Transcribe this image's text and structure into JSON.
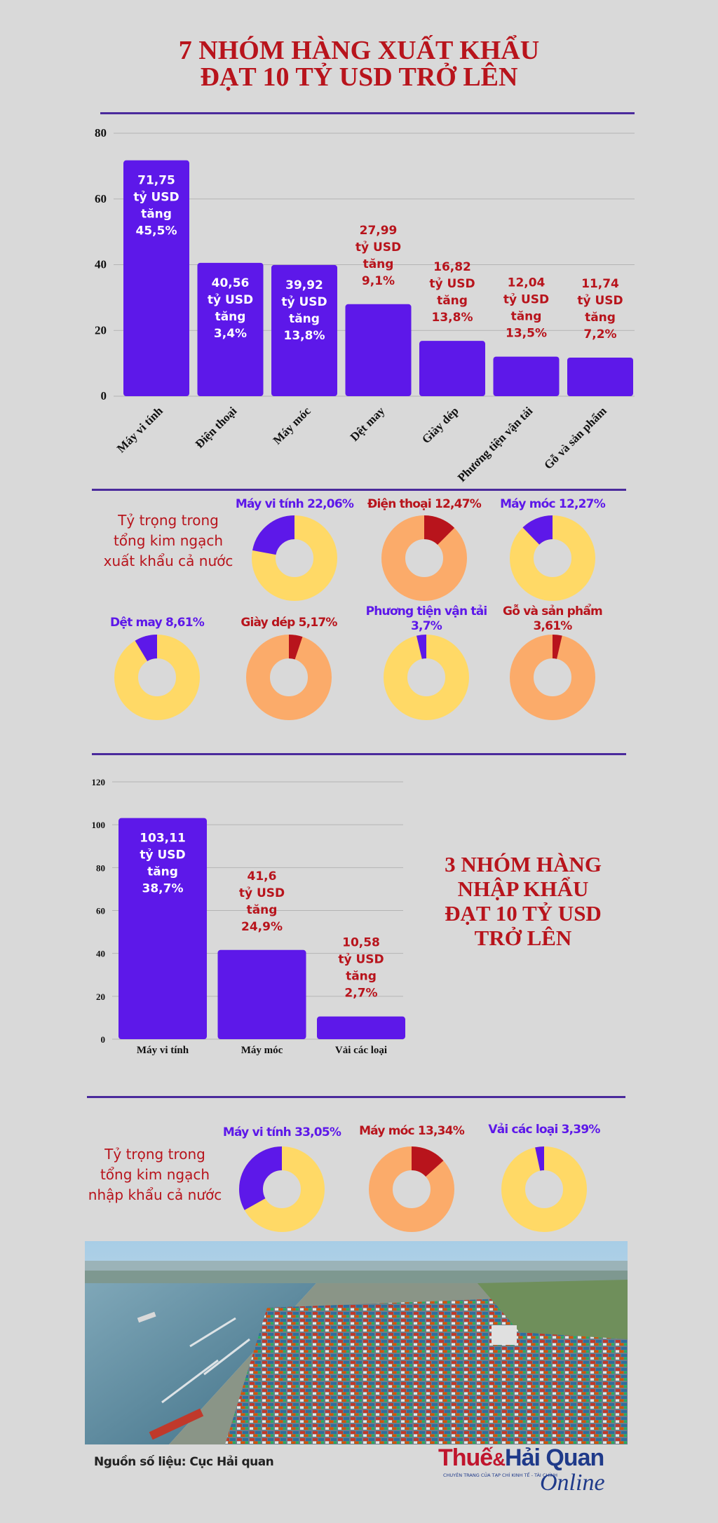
{
  "header": {
    "title_line1": "7 NHÓM HÀNG XUẤT KHẨU",
    "title_line2": "ĐẠT 10 TỶ USD TRỞ LÊN"
  },
  "colors": {
    "bar": "#5d18e9",
    "label_red": "#b8141c",
    "donut_yellow": "#ffd966",
    "donut_orange": "#fbab6a",
    "donut_red": "#b8141c",
    "donut_purple": "#5d18e9",
    "rule": "#4a2a9c"
  },
  "chart_data": [
    {
      "type": "bar",
      "categories": [
        "Máy vi tính",
        "Điện thoại",
        "Máy móc",
        "Dệt may",
        "Giày dép",
        "Phương tiện vận tải",
        "Gỗ và sản phẩm"
      ],
      "values": [
        71.75,
        40.56,
        39.92,
        27.99,
        16.82,
        12.04,
        11.74
      ],
      "data_labels": [
        [
          "71,75",
          "tỷ USD",
          "tăng",
          "45,5%"
        ],
        [
          "40,56",
          "tỷ USD",
          "tăng",
          "3,4%"
        ],
        [
          "39,92",
          "tỷ USD",
          "tăng",
          "13,8%"
        ],
        [
          "27,99",
          "tỷ USD",
          "tăng",
          "9,1%"
        ],
        [
          "16,82",
          "tỷ USD",
          "tăng",
          "13,8%"
        ],
        [
          "12,04",
          "tỷ USD",
          "tăng",
          "13,5%"
        ],
        [
          "11,74",
          "tỷ USD",
          "tăng",
          "7,2%"
        ]
      ],
      "yticks": [
        "0",
        "20",
        "40",
        "60",
        "80"
      ],
      "ylim": [
        0,
        80
      ],
      "grid": true,
      "title": "",
      "xlabel": "",
      "ylabel": ""
    },
    {
      "type": "bar",
      "categories": [
        "Máy vi tính",
        "Máy móc",
        "Vải các loại"
      ],
      "values": [
        103.11,
        41.6,
        10.58
      ],
      "data_labels": [
        [
          "103,11",
          "tỷ USD",
          "tăng",
          "38,7%"
        ],
        [
          "41,6",
          "tỷ USD",
          "tăng",
          "24,9%"
        ],
        [
          "10,58",
          "tỷ USD",
          "tăng",
          "2,7%"
        ]
      ],
      "yticks": [
        "0",
        "20",
        "40",
        "60",
        "80",
        "100",
        "120"
      ],
      "ylim": [
        0,
        120
      ],
      "grid": true,
      "title": "",
      "xlabel": "",
      "ylabel": ""
    },
    {
      "type": "pie",
      "title": "Tỷ trọng trong tổng kim ngạch xuất khẩu cả nước",
      "slices": [
        {
          "label": [
            "Máy vi tính 22,06%"
          ],
          "value": 22.06,
          "color": "purple",
          "base": "yellow"
        },
        {
          "label": [
            "Điện thoại 12,47%"
          ],
          "value": 12.47,
          "color": "red",
          "base": "orange"
        },
        {
          "label": [
            "Máy móc 12,27%"
          ],
          "value": 12.27,
          "color": "purple",
          "base": "yellow"
        },
        {
          "label": [
            "Dệt may 8,61%"
          ],
          "value": 8.61,
          "color": "purple",
          "base": "yellow"
        },
        {
          "label": [
            "Giày dép 5,17%"
          ],
          "value": 5.17,
          "color": "red",
          "base": "orange"
        },
        {
          "label": [
            "Phương tiện vận tải",
            "3,7%"
          ],
          "value": 3.7,
          "color": "purple",
          "base": "yellow"
        },
        {
          "label": [
            "Gỗ và sản phẩm",
            "3,61%"
          ],
          "value": 3.61,
          "color": "red",
          "base": "orange"
        }
      ]
    },
    {
      "type": "pie",
      "title": "Tỷ trọng trong tổng kim ngạch nhập khẩu cả nước",
      "slices": [
        {
          "label": [
            "Máy vi tính 33,05%"
          ],
          "value": 33.05,
          "color": "purple",
          "base": "yellow"
        },
        {
          "label": [
            "Máy móc 13,34%"
          ],
          "value": 13.34,
          "color": "red",
          "base": "orange"
        },
        {
          "label": [
            "Vải các loại 3,39%"
          ],
          "value": 3.39,
          "color": "purple",
          "base": "yellow"
        }
      ]
    }
  ],
  "export_share": {
    "title_lines": [
      "Tỷ trọng trong",
      "tổng kim ngạch",
      "xuất khẩu cả nước"
    ]
  },
  "import_block": {
    "title_lines": [
      "3 NHÓM HÀNG",
      "NHẬP KHẨU",
      "ĐẠT 10 TỶ USD",
      "TRỞ LÊN"
    ]
  },
  "import_share": {
    "title_lines": [
      "Tỷ trọng trong",
      "tổng kim ngạch",
      "nhập khẩu cả nước"
    ]
  },
  "footer": {
    "source": "Nguồn số liệu: Cục Hải quan",
    "logo_word1": "Thuế",
    "logo_amp": "&",
    "logo_word2": "Hải Quan",
    "logo_online": "Online",
    "logo_tagline": "CHUYÊN TRANG CỦA TẠP CHÍ KINH TẾ - TÀI CHÍNH"
  }
}
